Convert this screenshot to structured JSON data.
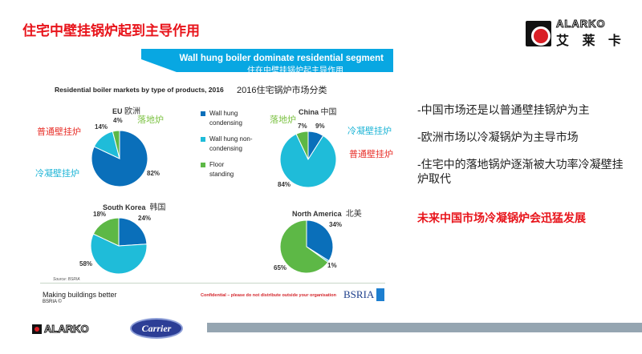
{
  "title": "住宅中壁挂锅炉起到主导作用",
  "logo": {
    "en": "ALARKO",
    "cn": "艾 莱 卡"
  },
  "banner": {
    "en": "Wall hung boiler dominate residential segment",
    "cn": "住在中壁挂锅炉起主导作用"
  },
  "colors": {
    "condensing": "#0a6fba",
    "non_condensing": "#1fbcd9",
    "floor": "#5db846"
  },
  "chart_data": {
    "type": "pie",
    "title": "Residential boiler markets by type of products, 2016",
    "title_cn": "2016住宅锅炉市场分类",
    "legend": [
      "Wall hung condensing",
      "Wall hung non-condensing",
      "Floor standing"
    ],
    "legend_placement": "center",
    "charts": [
      {
        "name": "EU",
        "name_cn": "欧洲",
        "values": [
          82,
          14,
          4
        ],
        "labels": [
          "82%",
          "14%",
          "4%"
        ],
        "annotations": {
          "condensing": "冷凝壁挂炉",
          "non_condensing": "普通壁挂炉",
          "floor": "落地炉"
        }
      },
      {
        "name": "China",
        "name_cn": "中国",
        "values": [
          9,
          84,
          7
        ],
        "labels": [
          "9%",
          "84%",
          "7%"
        ],
        "annotations": {
          "condensing": "冷凝壁挂炉",
          "non_condensing": "普通壁挂炉",
          "floor": "落地炉"
        }
      },
      {
        "name": "South Korea",
        "name_cn": "韩国",
        "values": [
          24,
          58,
          18
        ],
        "labels": [
          "24%",
          "58%",
          "18%"
        ]
      },
      {
        "name": "North America",
        "name_cn": "北美",
        "values": [
          34,
          1,
          65
        ],
        "labels": [
          "34%",
          "1%",
          "65%"
        ]
      }
    ],
    "source": "Source: BSRIA"
  },
  "footer": {
    "tagline": "Making buildings better",
    "copyright": "BSRIA ©",
    "confidential": "Confidential – please do not distribute outside your organisation",
    "bsria": "BSRIA"
  },
  "bullets": [
    "-中国市场还是以普通壁挂锅炉为主",
    "-欧洲市场以冷凝锅炉为主导市场",
    "-住宅中的落地锅炉逐渐被大功率冷凝壁挂炉取代"
  ],
  "conclusion": "未来中国市场冷凝锅炉会迅猛发展",
  "bottom": {
    "alarko": "ALARKO",
    "carrier": "Carrier"
  }
}
